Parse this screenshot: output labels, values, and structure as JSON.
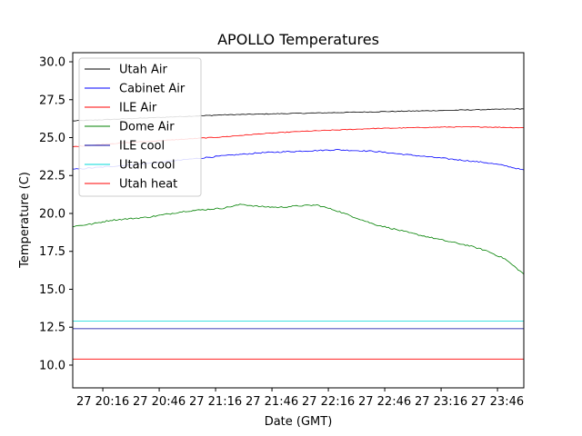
{
  "chart_data": {
    "type": "line",
    "title": "APOLLO Temperatures",
    "xlabel": "Date (GMT)",
    "ylabel": "Temperature (C)",
    "xlim": [
      0,
      240
    ],
    "ylim": [
      8.5,
      30.6
    ],
    "grid": false,
    "legend_position": "top-left",
    "x_unit": "minutes after 27 20:00 GMT",
    "x_ticks": [
      {
        "value": 16,
        "label": "27 20:16"
      },
      {
        "value": 46,
        "label": "27 20:46"
      },
      {
        "value": 76,
        "label": "27 21:16"
      },
      {
        "value": 106,
        "label": "27 21:46"
      },
      {
        "value": 136,
        "label": "27 22:16"
      },
      {
        "value": 166,
        "label": "27 22:46"
      },
      {
        "value": 196,
        "label": "27 23:16"
      },
      {
        "value": 226,
        "label": "27 23:46"
      }
    ],
    "y_ticks": [
      {
        "value": 10.0,
        "label": "10.0"
      },
      {
        "value": 12.5,
        "label": "12.5"
      },
      {
        "value": 15.0,
        "label": "15.0"
      },
      {
        "value": 17.5,
        "label": "17.5"
      },
      {
        "value": 20.0,
        "label": "20.0"
      },
      {
        "value": 22.5,
        "label": "22.5"
      },
      {
        "value": 25.0,
        "label": "25.0"
      },
      {
        "value": 27.5,
        "label": "27.5"
      },
      {
        "value": 30.0,
        "label": "30.0"
      }
    ],
    "series": [
      {
        "name": "Utah Air",
        "color": "#000000",
        "noise": 0.05,
        "x": [
          0,
          20,
          40,
          60,
          80,
          100,
          120,
          140,
          160,
          180,
          200,
          220,
          240
        ],
        "y": [
          26.1,
          26.2,
          26.3,
          26.4,
          26.5,
          26.55,
          26.6,
          26.65,
          26.7,
          26.75,
          26.8,
          26.85,
          26.9
        ]
      },
      {
        "name": "Cabinet Air",
        "color": "#0000ff",
        "noise": 0.08,
        "x": [
          0,
          20,
          40,
          60,
          80,
          100,
          120,
          140,
          160,
          180,
          200,
          220,
          230,
          240
        ],
        "y": [
          22.9,
          23.1,
          23.3,
          23.55,
          23.8,
          24.0,
          24.1,
          24.2,
          24.1,
          23.85,
          23.6,
          23.35,
          23.15,
          22.85
        ]
      },
      {
        "name": "ILE Air",
        "color": "#ff0000",
        "noise": 0.05,
        "x": [
          0,
          20,
          40,
          60,
          80,
          100,
          120,
          140,
          160,
          180,
          200,
          220,
          240
        ],
        "y": [
          24.4,
          24.6,
          24.75,
          24.9,
          25.05,
          25.25,
          25.4,
          25.5,
          25.6,
          25.65,
          25.7,
          25.7,
          25.65
        ]
      },
      {
        "name": "Dome Air",
        "color": "#008000",
        "noise": 0.09,
        "x": [
          0,
          10,
          20,
          40,
          60,
          80,
          90,
          100,
          110,
          120,
          130,
          140,
          160,
          180,
          200,
          210,
          220,
          230,
          235,
          240
        ],
        "y": [
          19.15,
          19.3,
          19.55,
          19.75,
          20.15,
          20.35,
          20.6,
          20.45,
          20.4,
          20.5,
          20.55,
          20.2,
          19.3,
          18.7,
          18.15,
          17.9,
          17.55,
          17.0,
          16.5,
          16.0
        ]
      },
      {
        "name": "ILE cool",
        "color": "#0000a0",
        "noise": 0.0,
        "x": [
          0,
          240
        ],
        "y": [
          12.4,
          12.4
        ]
      },
      {
        "name": "Utah cool",
        "color": "#00d8d8",
        "noise": 0.0,
        "x": [
          0,
          240
        ],
        "y": [
          12.9,
          12.9
        ]
      },
      {
        "name": "Utah heat",
        "color": "#ff0000",
        "noise": 0.0,
        "x": [
          0,
          240
        ],
        "y": [
          10.4,
          10.4
        ]
      }
    ]
  }
}
